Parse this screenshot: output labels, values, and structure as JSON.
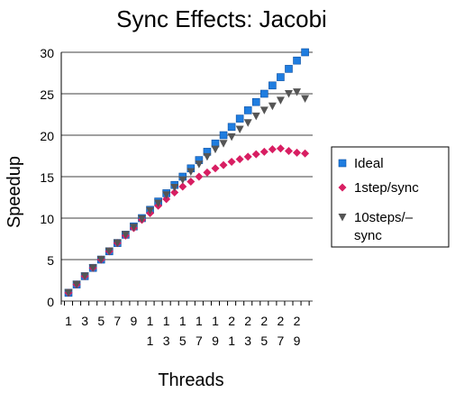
{
  "chart_data": {
    "type": "scatter",
    "title": "Sync Effects: Jacobi",
    "xlabel": "Threads",
    "ylabel": "Speedup",
    "ylim": [
      0,
      30
    ],
    "y_ticks": [
      0,
      5,
      10,
      15,
      20,
      25,
      30
    ],
    "x": [
      1,
      2,
      3,
      4,
      5,
      6,
      7,
      8,
      9,
      10,
      11,
      12,
      13,
      14,
      15,
      16,
      17,
      18,
      19,
      20,
      21,
      22,
      23,
      24,
      25,
      26,
      27,
      28,
      29,
      30
    ],
    "x_tick_labels": [
      "1",
      "3",
      "5",
      "7",
      "9",
      "11",
      "13",
      "15",
      "17",
      "19",
      "21",
      "23",
      "25",
      "27",
      "29"
    ],
    "grid": "horizontal",
    "legend_position": "right",
    "series": [
      {
        "name": "Ideal",
        "marker": "square",
        "color": "#1f7de0",
        "values": [
          1,
          2,
          3,
          4,
          5,
          6,
          7,
          8,
          9,
          10,
          11,
          12,
          13,
          14,
          15,
          16,
          17,
          18,
          19,
          20,
          21,
          22,
          23,
          24,
          25,
          26,
          27,
          28,
          29,
          30
        ]
      },
      {
        "name": "1step/sync",
        "marker": "diamond",
        "color": "#d81e62",
        "values": [
          1,
          2,
          3,
          4,
          5,
          6,
          7,
          7.9,
          8.8,
          9.8,
          10.6,
          11.5,
          12.3,
          13.1,
          13.8,
          14.4,
          15,
          15.5,
          16,
          16.4,
          16.8,
          17.1,
          17.4,
          17.7,
          18,
          18.3,
          18.4,
          18.1,
          17.9,
          17.8
        ]
      },
      {
        "name": "10steps/–sync",
        "marker": "triangle-down",
        "color": "#555555",
        "values": [
          1,
          2,
          3,
          4,
          5,
          6,
          7,
          8,
          8.9,
          9.9,
          10.9,
          11.8,
          12.8,
          13.7,
          14.6,
          15.6,
          16.5,
          17.4,
          18.3,
          19,
          19.8,
          20.7,
          21.5,
          22.3,
          23,
          23.5,
          24.2,
          25,
          25.2,
          24.4
        ]
      }
    ]
  }
}
